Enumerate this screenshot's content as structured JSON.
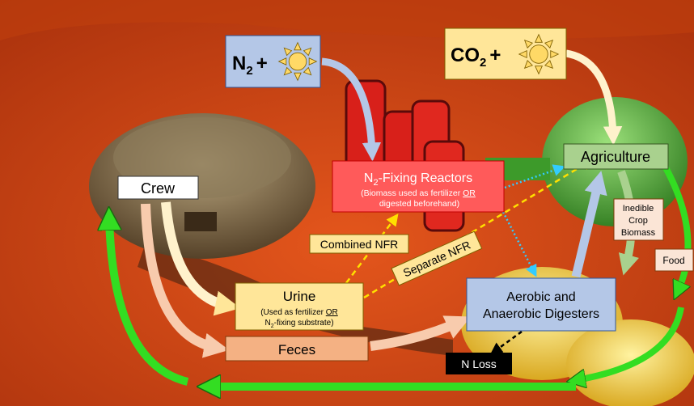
{
  "inputs": [
    {
      "molecule": "N",
      "subscript": "2",
      "operator": "+"
    },
    {
      "molecule": "CO",
      "subscript": "2",
      "operator": "+"
    }
  ],
  "nodes": {
    "crew": "Crew",
    "reactors": {
      "title": [
        "N",
        "2",
        "-Fixing Reactors"
      ],
      "note": [
        "(Biomass used as fertilizer ",
        "OR",
        " digested beforehand)"
      ]
    },
    "agriculture": "Agriculture",
    "urine": {
      "title": "Urine",
      "note": [
        "(Used as fertilizer ",
        "OR",
        "N",
        "2",
        "-fixing substrate)"
      ]
    },
    "feces": "Feces",
    "digesters": [
      "Aerobic and",
      "Anaerobic Digesters"
    ],
    "n_loss": "N Loss"
  },
  "flow_labels": {
    "combined": "Combined NFR",
    "separate": "Separate NFR",
    "inedible": [
      "Inedible",
      "Crop",
      "Biomass"
    ],
    "food": "Food"
  }
}
